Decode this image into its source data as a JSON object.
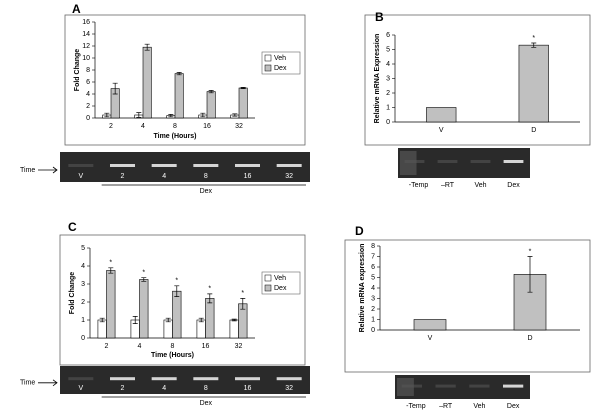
{
  "chart_data": [
    {
      "type": "bar",
      "title": "A",
      "ylabel": "Fold Change",
      "xlabel": "Time (Hours)",
      "categories": [
        "2",
        "4",
        "8",
        "16",
        "32"
      ],
      "series": [
        {
          "name": "Veh",
          "color": "#ffffff",
          "values": [
            0.5,
            0.5,
            0.4,
            0.5,
            0.5
          ],
          "errors": [
            0.3,
            0.4,
            0.2,
            0.3,
            0.2
          ]
        },
        {
          "name": "Dex",
          "color": "#c0c0c0",
          "values": [
            4.9,
            11.8,
            7.4,
            4.4,
            5.0
          ],
          "errors": [
            0.9,
            0.5,
            0.2,
            0.2,
            0.1
          ]
        }
      ],
      "ylim": [
        0,
        16
      ],
      "yticks": [
        0,
        2,
        4,
        6,
        8,
        10,
        12,
        14,
        16
      ],
      "legend": "right",
      "gel": {
        "marker": "Time",
        "lanes": [
          "V",
          "2",
          "4",
          "8",
          "16",
          "32"
        ],
        "group": "Dex"
      }
    },
    {
      "type": "bar",
      "title": "B",
      "ylabel": "Relative mRNA Expression",
      "categories": [
        "V",
        "D"
      ],
      "series": [
        {
          "color": "#c0c0c0",
          "values": [
            1,
            5.3
          ],
          "errors": [
            0,
            0.15
          ],
          "marks": [
            null,
            "*"
          ]
        }
      ],
      "ylim": [
        0,
        6
      ],
      "yticks": [
        0,
        1,
        2,
        3,
        4,
        5,
        6
      ],
      "gel": {
        "lanes": [
          "-Temp",
          "–RT",
          "Veh",
          "Dex"
        ]
      }
    },
    {
      "type": "bar",
      "title": "C",
      "ylabel": "Fold Change",
      "xlabel": "Time (Hours)",
      "categories": [
        "2",
        "4",
        "8",
        "16",
        "32"
      ],
      "series": [
        {
          "name": "Veh",
          "color": "#ffffff",
          "values": [
            1,
            1,
            1,
            1,
            1
          ],
          "errors": [
            0.1,
            0.2,
            0.1,
            0.1,
            0.05
          ]
        },
        {
          "name": "Dex",
          "color": "#c0c0c0",
          "values": [
            3.75,
            3.25,
            2.6,
            2.2,
            1.9
          ],
          "errors": [
            0.15,
            0.1,
            0.3,
            0.25,
            0.3
          ],
          "marks": [
            "*",
            "*",
            "*",
            "*",
            "*"
          ]
        }
      ],
      "ylim": [
        0,
        5
      ],
      "yticks": [
        0,
        1,
        2,
        3,
        4,
        5
      ],
      "legend": "right",
      "gel": {
        "marker": "Time",
        "lanes": [
          "V",
          "2",
          "4",
          "8",
          "16",
          "32"
        ],
        "group": "Dex"
      }
    },
    {
      "type": "bar",
      "title": "D",
      "ylabel": "Relative mRNA expression",
      "categories": [
        "V",
        "D"
      ],
      "series": [
        {
          "color": "#c0c0c0",
          "values": [
            1,
            5.3
          ],
          "errors": [
            0,
            1.7
          ],
          "marks": [
            null,
            "*"
          ]
        }
      ],
      "ylim": [
        0,
        8
      ],
      "yticks": [
        0,
        1,
        2,
        3,
        4,
        5,
        6,
        7,
        8
      ],
      "gel": {
        "lanes": [
          "-Temp",
          "–RT",
          "Veh",
          "Dex"
        ]
      }
    }
  ]
}
